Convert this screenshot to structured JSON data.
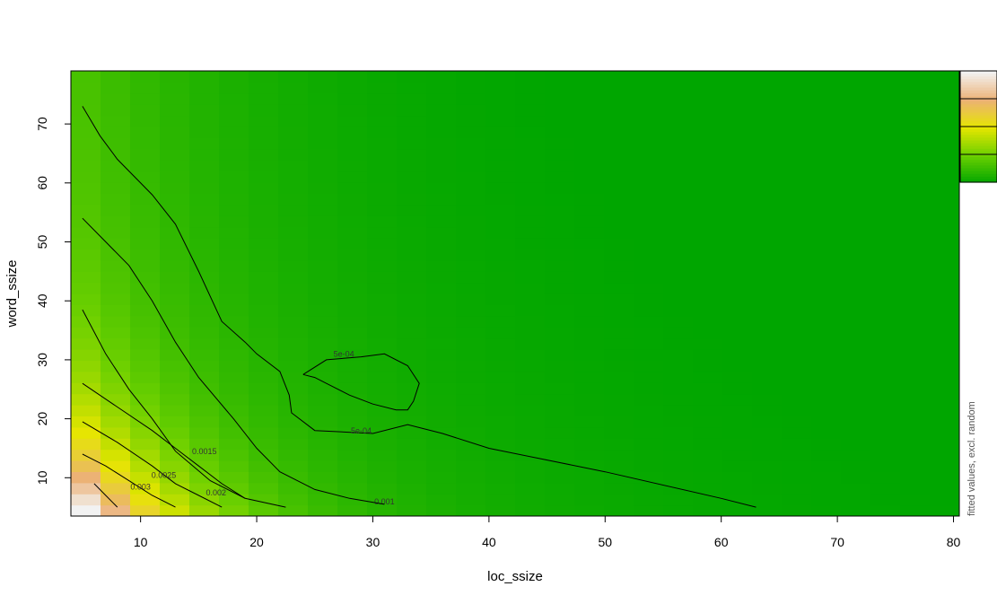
{
  "chart_data": {
    "type": "heatmap",
    "title": "",
    "xlabel": "loc_ssize",
    "ylabel": "word_ssize",
    "xlim": [
      4,
      80.5
    ],
    "ylim": [
      3.5,
      79
    ],
    "x_ticks": [
      10,
      20,
      30,
      40,
      50,
      60,
      70,
      80
    ],
    "y_ticks": [
      10,
      20,
      30,
      40,
      50,
      60,
      70
    ],
    "side_label": "fitted values, excl. random",
    "colors": {
      "low": "#00A600",
      "mid_low": "#6CD000",
      "mid": "#E6E600",
      "mid_high": "#ECB176",
      "high": "#F2F2F2"
    },
    "legend_position": "top-right",
    "contours": [
      {
        "label": "0.001",
        "points": [
          [
            5,
            73
          ],
          [
            6.5,
            68
          ],
          [
            8,
            64
          ],
          [
            11,
            58
          ],
          [
            13,
            53
          ],
          [
            15,
            45
          ],
          [
            17,
            36.5
          ],
          [
            19,
            33
          ],
          [
            20,
            31
          ],
          [
            22,
            28
          ],
          [
            22.8,
            24
          ],
          [
            23,
            21
          ],
          [
            25,
            18
          ],
          [
            30,
            17.5
          ],
          [
            33,
            19
          ],
          [
            36,
            17.5
          ],
          [
            40,
            15
          ],
          [
            50,
            11
          ],
          [
            60,
            6.5
          ],
          [
            63,
            5
          ]
        ],
        "label_at": [
          31,
          5.5
        ]
      },
      {
        "label": "0.001",
        "points": [
          [
            5,
            54
          ],
          [
            7,
            50
          ],
          [
            9,
            46
          ],
          [
            11,
            40
          ],
          [
            13,
            33
          ],
          [
            15,
            27
          ],
          [
            18,
            20
          ],
          [
            20,
            15
          ],
          [
            22,
            11
          ],
          [
            25,
            8
          ],
          [
            28,
            6.5
          ],
          [
            31,
            5.5
          ]
        ],
        "label_at": null
      },
      {
        "label": "5e-04",
        "points": [
          [
            24,
            27.5
          ],
          [
            25,
            27
          ],
          [
            26,
            26
          ],
          [
            28,
            24
          ],
          [
            30,
            22.5
          ],
          [
            32,
            21.5
          ],
          [
            33,
            21.5
          ],
          [
            33.5,
            23
          ],
          [
            34,
            26
          ],
          [
            33,
            29
          ],
          [
            31,
            31
          ],
          [
            29,
            30.5
          ],
          [
            26,
            30
          ],
          [
            24,
            27.5
          ]
        ],
        "label_at": [
          27.5,
          30.5
        ]
      },
      {
        "label": "5e-04",
        "points": [],
        "label_at": [
          29,
          17.5
        ]
      },
      {
        "label": "0.0015",
        "points": [
          [
            5,
            38.5
          ],
          [
            7,
            31
          ],
          [
            9,
            25
          ],
          [
            11,
            20
          ],
          [
            13,
            14.5
          ],
          [
            16,
            9.5
          ],
          [
            19,
            6.5
          ],
          [
            22.5,
            5
          ]
        ],
        "label_at": [
          15.5,
          14
        ]
      },
      {
        "label": "0.002",
        "points": [
          [
            5,
            26
          ],
          [
            8,
            22
          ],
          [
            11,
            18
          ],
          [
            13,
            15
          ],
          [
            15,
            12
          ],
          [
            17,
            9
          ],
          [
            19,
            6.5
          ]
        ],
        "label_at": [
          16.5,
          7
        ]
      },
      {
        "label": "0.0025",
        "points": [
          [
            5,
            19.5
          ],
          [
            8,
            16
          ],
          [
            11,
            12
          ],
          [
            13,
            9
          ],
          [
            15,
            7
          ],
          [
            17,
            5
          ]
        ],
        "label_at": [
          12,
          10
        ]
      },
      {
        "label": "0.003",
        "points": [
          [
            5,
            14
          ],
          [
            7,
            12
          ],
          [
            9,
            9.5
          ],
          [
            11,
            7
          ],
          [
            13,
            5
          ]
        ],
        "label_at": [
          10,
          8
        ]
      },
      {
        "label": "",
        "points": [
          [
            6,
            9
          ],
          [
            7,
            7
          ],
          [
            8,
            5
          ]
        ],
        "label_at": null
      }
    ]
  }
}
